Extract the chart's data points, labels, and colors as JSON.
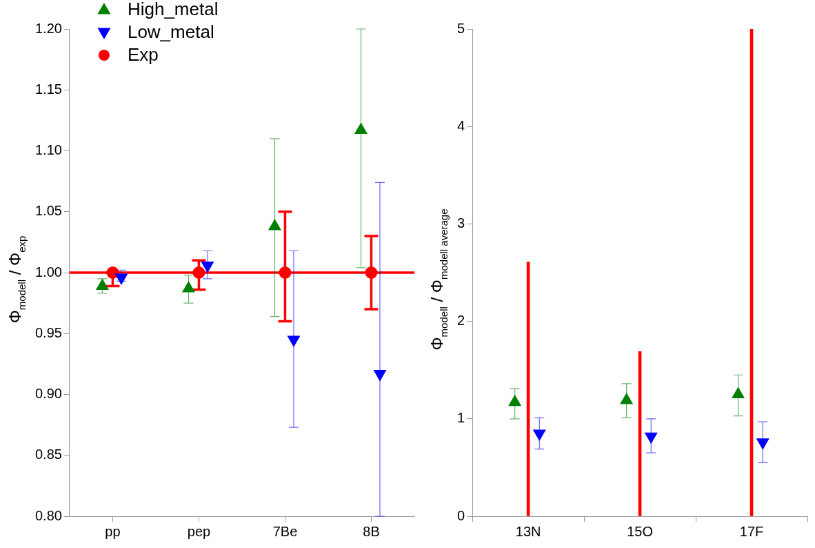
{
  "chart_data": [
    {
      "type": "scatter",
      "categories": [
        "pp",
        "pep",
        "7Be",
        "8B"
      ],
      "ylabel": "Φ$_{modell}$ / Φ$_{exp}$",
      "ylim": [
        0.8,
        1.2
      ],
      "yticks": [
        {
          "value": 0.8,
          "label": "0.80"
        },
        {
          "value": 0.85,
          "label": "0.85"
        },
        {
          "value": 0.9,
          "label": "0.90"
        },
        {
          "value": 0.95,
          "label": "0.95"
        },
        {
          "value": 1.0,
          "label": "1.00"
        },
        {
          "value": 1.05,
          "label": "1.05"
        },
        {
          "value": 1.1,
          "label": "1.10"
        },
        {
          "value": 1.15,
          "label": "1.15"
        },
        {
          "value": 1.2,
          "label": "1.20"
        }
      ],
      "grid": false,
      "legend": "top left",
      "ref_lines": [
        {
          "axis": "y",
          "value": 1.0,
          "color": "#ff0000"
        }
      ],
      "series": [
        {
          "name": "High_metal",
          "color": "#008000",
          "marker": "triangle",
          "values": [
            0.989,
            0.987,
            1.038,
            1.117
          ],
          "errors": [
            [
              0.983,
              0.995
            ],
            [
              0.975,
              0.998
            ],
            [
              0.964,
              1.11
            ],
            [
              1.004,
              1.2
            ]
          ]
        },
        {
          "name": "Low_metal",
          "color": "#0000ff",
          "marker": "triangle",
          "values": [
            0.996,
            1.006,
            0.945,
            0.917
          ],
          "errors": [
            [
              0.993,
              1.002
            ],
            [
              0.995,
              1.018
            ],
            [
              0.873,
              1.018
            ],
            [
              0.8,
              1.074
            ]
          ]
        },
        {
          "name": "Exp",
          "color": "#ff0000",
          "marker": "circle",
          "values": [
            1.0,
            1.0,
            1.0,
            1.0
          ],
          "errors": [
            [
              0.989,
              1.0
            ],
            [
              0.986,
              1.01
            ],
            [
              0.96,
              1.05
            ],
            [
              0.97,
              1.03
            ]
          ]
        }
      ]
    },
    {
      "type": "scatter",
      "categories": [
        "13N",
        "15O",
        "17F"
      ],
      "ylabel": "Φ$_{modell}$ / Φ$_{modell average}$",
      "ylim": [
        0,
        5
      ],
      "yticks": [
        0,
        1,
        2,
        3,
        4,
        5
      ],
      "grid": false,
      "legend": false,
      "series": [
        {
          "color": "#008000",
          "marker": "triangle",
          "values": [
            1.17,
            1.19,
            1.25
          ],
          "errors": [
            [
              1.0,
              1.31
            ],
            [
              1.01,
              1.36
            ],
            [
              1.03,
              1.45
            ]
          ]
        },
        {
          "color": "#0000ff",
          "marker": "triangle",
          "values": [
            0.85,
            0.82,
            0.76
          ],
          "errors": [
            [
              0.69,
              1.01
            ],
            [
              0.65,
              1.0
            ],
            [
              0.55,
              0.97
            ]
          ]
        },
        {
          "type": "bar",
          "color": "#ff0000",
          "values": [
            2.61,
            1.69,
            5
          ]
        }
      ]
    }
  ]
}
